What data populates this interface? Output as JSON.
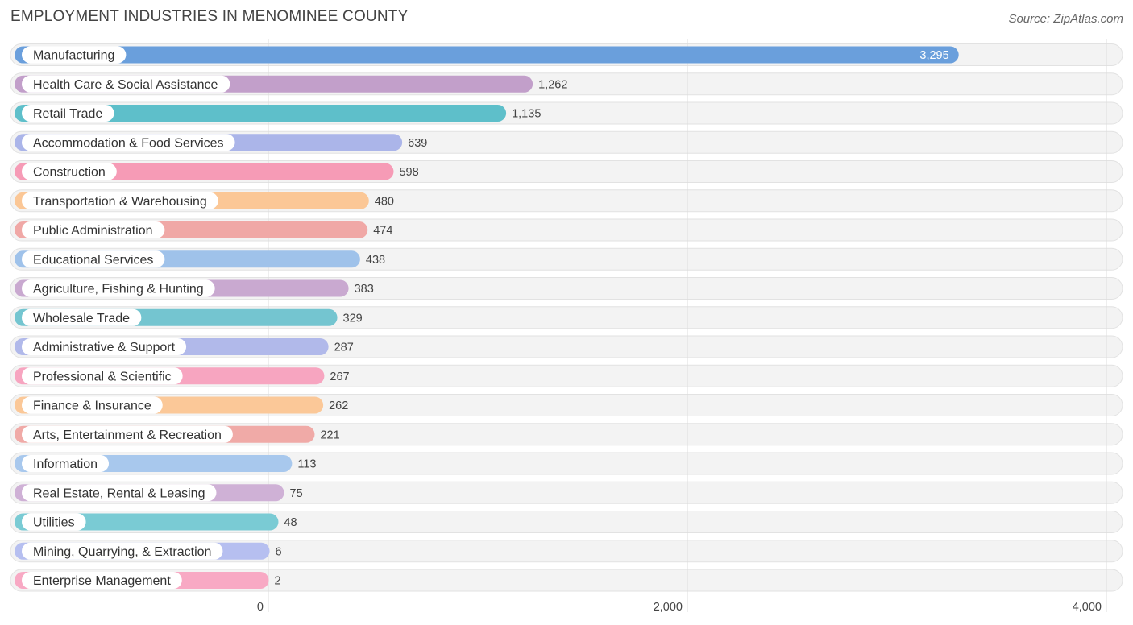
{
  "header": {
    "title": "EMPLOYMENT INDUSTRIES IN MENOMINEE COUNTY",
    "source": "Source: ZipAtlas.com"
  },
  "chart_data": {
    "type": "bar",
    "orientation": "horizontal",
    "title": "EMPLOYMENT INDUSTRIES IN MENOMINEE COUNTY",
    "xlabel": "",
    "ylabel": "",
    "xlim": [
      0,
      4000
    ],
    "xticks": [
      0,
      2000,
      4000
    ],
    "xtick_labels": [
      "0",
      "2,000",
      "4,000"
    ],
    "grid": true,
    "categories": [
      "Manufacturing",
      "Health Care & Social Assistance",
      "Retail Trade",
      "Accommodation & Food Services",
      "Construction",
      "Transportation & Warehousing",
      "Public Administration",
      "Educational Services",
      "Agriculture, Fishing & Hunting",
      "Wholesale Trade",
      "Administrative & Support",
      "Professional & Scientific",
      "Finance & Insurance",
      "Arts, Entertainment & Recreation",
      "Information",
      "Real Estate, Rental & Leasing",
      "Utilities",
      "Mining, Quarrying, & Extraction",
      "Enterprise Management"
    ],
    "values": [
      3295,
      1262,
      1135,
      639,
      598,
      480,
      474,
      438,
      383,
      329,
      287,
      267,
      262,
      221,
      113,
      75,
      48,
      6,
      2
    ],
    "value_labels": [
      "3,295",
      "1,262",
      "1,135",
      "639",
      "598",
      "480",
      "474",
      "438",
      "383",
      "329",
      "287",
      "267",
      "262",
      "221",
      "113",
      "75",
      "48",
      "6",
      "2"
    ],
    "colors": [
      "#6a9fdc",
      "#c29fca",
      "#5ebfca",
      "#abb5e9",
      "#f69bb6",
      "#fbc796",
      "#f0a8a6",
      "#9fc2ea",
      "#c9a9d0",
      "#74c5d0",
      "#b1b9ea",
      "#f7a5c0",
      "#fbc898",
      "#f0aaa7",
      "#a8c8ed",
      "#cfb1d6",
      "#7acbd4",
      "#b6bff0",
      "#f8a9c4"
    ]
  }
}
